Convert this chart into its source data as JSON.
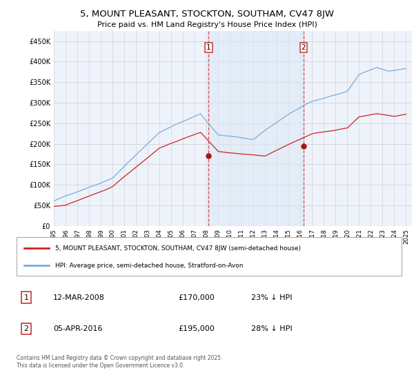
{
  "title": "5, MOUNT PLEASANT, STOCKTON, SOUTHAM, CV47 8JW",
  "subtitle": "Price paid vs. HM Land Registry's House Price Index (HPI)",
  "ylim": [
    0,
    475000
  ],
  "yticks": [
    0,
    50000,
    100000,
    150000,
    200000,
    250000,
    300000,
    350000,
    400000,
    450000
  ],
  "ytick_labels": [
    "£0",
    "£50K",
    "£100K",
    "£150K",
    "£200K",
    "£250K",
    "£300K",
    "£350K",
    "£400K",
    "£450K"
  ],
  "xlim_start": 1995.0,
  "xlim_end": 2025.5,
  "background_color": "#ffffff",
  "plot_bg_color": "#eef2fa",
  "grid_color": "#cccccc",
  "hpi_line_color": "#7aabdc",
  "price_line_color": "#cc2222",
  "vline_color": "#cc3333",
  "shade_color": "#dce8f5",
  "shade_alpha": 0.6,
  "transaction1_x": 2008.19,
  "transaction1_y": 170000,
  "transaction2_x": 2016.27,
  "transaction2_y": 195000,
  "legend_entries": [
    "5, MOUNT PLEASANT, STOCKTON, SOUTHAM, CV47 8JW (semi-detached house)",
    "HPI: Average price, semi-detached house, Stratford-on-Avon"
  ],
  "table_rows": [
    [
      "1",
      "12-MAR-2008",
      "£170,000",
      "23% ↓ HPI"
    ],
    [
      "2",
      "05-APR-2016",
      "£195,000",
      "28% ↓ HPI"
    ]
  ],
  "footer": "Contains HM Land Registry data © Crown copyright and database right 2025.\nThis data is licensed under the Open Government Licence v3.0."
}
